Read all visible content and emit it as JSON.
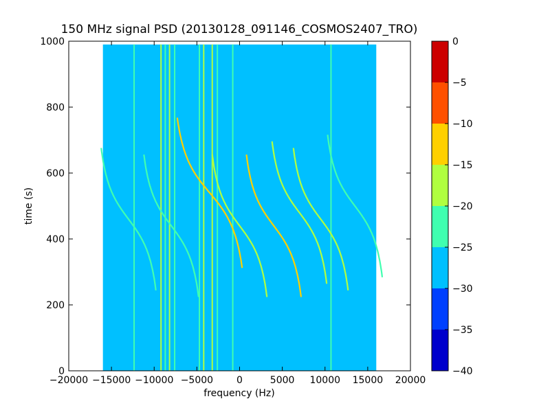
{
  "chart_data": {
    "type": "heatmap",
    "title": "150 MHz signal PSD (20130128_091146_COSMOS2407_TRO)",
    "xlabel": "frequency (Hz)",
    "ylabel": "time (s)",
    "xlim": [
      -20000,
      20000
    ],
    "ylim": [
      0,
      1000
    ],
    "x_ticks": [
      -20000,
      -15000,
      -10000,
      -5000,
      0,
      5000,
      10000,
      15000,
      20000
    ],
    "x_tick_labels": [
      "−20000",
      "−15000",
      "−10000",
      "−5000",
      "0",
      "5000",
      "10000",
      "15000",
      "20000"
    ],
    "y_ticks": [
      0,
      200,
      400,
      600,
      800,
      1000
    ],
    "y_tick_labels": [
      "0",
      "200",
      "400",
      "600",
      "800",
      "1000"
    ],
    "data_extent": {
      "freq": [
        -16000,
        16000
      ],
      "time": [
        0,
        990
      ]
    },
    "background_level_db": -27.5,
    "colorbar": {
      "levels": [
        -40,
        -35,
        -30,
        -25,
        -20,
        -15,
        -10,
        -5,
        0
      ],
      "tick_labels": [
        "−40",
        "−35",
        "−30",
        "−25",
        "−20",
        "−15",
        "−10",
        "−5",
        "0"
      ],
      "colors": [
        "#0000cc",
        "#0040ff",
        "#00c0ff",
        "#40ffb0",
        "#b0ff40",
        "#ffd000",
        "#ff5000",
        "#cc0000"
      ]
    },
    "vertical_lines": [
      {
        "freq": -12350,
        "db": -22
      },
      {
        "freq": -9200,
        "db": -20
      },
      {
        "freq": -8700,
        "db": -22
      },
      {
        "freq": -8200,
        "db": -18
      },
      {
        "freq": -7600,
        "db": -22
      },
      {
        "freq": -4700,
        "db": -22
      },
      {
        "freq": -4200,
        "db": -20
      },
      {
        "freq": -3200,
        "db": -18
      },
      {
        "freq": -2600,
        "db": -22
      },
      {
        "freq": -800,
        "db": -22
      },
      {
        "freq": 10700,
        "db": -22
      }
    ],
    "doppler_traces": [
      {
        "center_freq": -13000,
        "tca": 460,
        "half_width": 3200,
        "curvature": 180,
        "db": -22
      },
      {
        "center_freq": -8000,
        "tca": 440,
        "half_width": 3200,
        "curvature": 180,
        "db": -22
      },
      {
        "center_freq": -3500,
        "tca": 540,
        "half_width": 3800,
        "curvature": 190,
        "db": -12
      },
      {
        "center_freq": 0,
        "tca": 440,
        "half_width": 3200,
        "curvature": 180,
        "db": -20
      },
      {
        "center_freq": 4000,
        "tca": 440,
        "half_width": 3200,
        "curvature": 180,
        "db": -12
      },
      {
        "center_freq": 7000,
        "tca": 480,
        "half_width": 3200,
        "curvature": 180,
        "db": -18
      },
      {
        "center_freq": 9500,
        "tca": 460,
        "half_width": 3200,
        "curvature": 180,
        "db": -20
      },
      {
        "center_freq": 13500,
        "tca": 500,
        "half_width": 3200,
        "curvature": 180,
        "db": -22
      }
    ]
  }
}
